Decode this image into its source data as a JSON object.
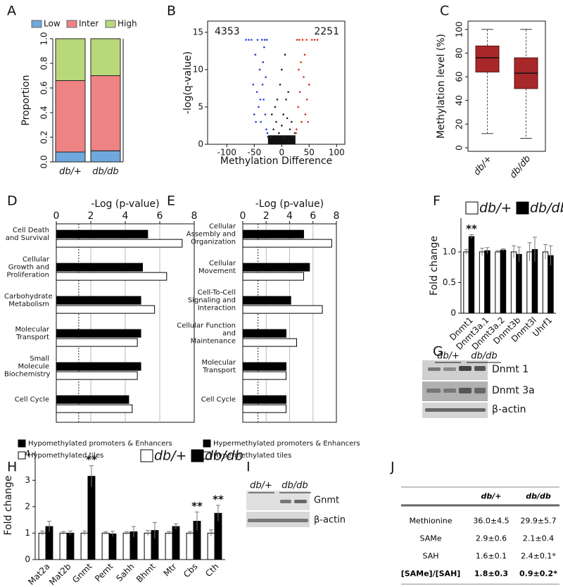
{
  "panel_labels": [
    "A",
    "B",
    "C",
    "D",
    "E",
    "F",
    "G",
    "H",
    "I",
    "J"
  ],
  "chart_data": [
    {
      "type": "bar",
      "stacked": true,
      "categories": [
        "db/+",
        "db/db"
      ],
      "ylabel": "Proportion",
      "series": [
        {
          "name": "Low",
          "color": "#6fa8dc",
          "values": [
            0.08,
            0.09
          ]
        },
        {
          "name": "Inter",
          "color": "#ee8383",
          "values": [
            0.58,
            0.61
          ]
        },
        {
          "name": "High",
          "color": "#b8d87a",
          "values": [
            0.34,
            0.3
          ]
        }
      ],
      "ylim": [
        0,
        1
      ],
      "yticks": [
        {
          "value": 0,
          "label": "0.0"
        },
        0.2,
        0.4,
        0.6,
        0.8,
        {
          "value": 1,
          "label": "1.0"
        }
      ]
    },
    {
      "type": "scatter",
      "xlabel": "Methylation Difference",
      "ylabel": "-log(q-value)",
      "annotations": [
        {
          "text": "4353",
          "color": "#1f3fd6"
        },
        {
          "text": "2251",
          "color": "#e02b1a"
        }
      ],
      "series": [
        {
          "color": "#222222",
          "x": [
            -20,
            -15,
            -10,
            -5,
            0,
            5,
            10,
            15,
            20,
            -12,
            8,
            -3,
            3,
            18,
            -18,
            0,
            12,
            -8,
            6,
            -25,
            24
          ],
          "values": [
            1,
            2,
            3,
            1.5,
            2.5,
            1,
            3.5,
            2,
            1,
            5,
            6,
            8,
            4,
            3,
            4,
            10,
            7,
            6,
            12,
            1,
            1.5
          ]
        },
        {
          "color": "#1f3fd6",
          "x": [
            -28,
            -30,
            -33,
            -35,
            -38,
            -40,
            -42,
            -45,
            -48,
            -50,
            -27,
            -31,
            -36,
            -44,
            -55,
            -60,
            -26,
            -29,
            -34,
            -39,
            -47,
            -52,
            -65,
            -32
          ],
          "values": [
            2,
            4,
            6,
            8,
            3,
            10,
            5,
            7,
            12,
            4,
            14,
            14,
            14,
            14,
            14,
            14,
            1.5,
            9,
            11,
            6,
            3,
            8,
            14,
            13
          ]
        },
        {
          "color": "#e02b1a",
          "x": [
            27,
            30,
            33,
            36,
            40,
            43,
            46,
            50,
            28,
            32,
            38,
            45,
            55,
            60,
            26,
            35,
            42,
            48,
            65,
            31
          ],
          "values": [
            2,
            5,
            7,
            3,
            9,
            4,
            6,
            8,
            14,
            14,
            14,
            14,
            14,
            14,
            1.5,
            11,
            12,
            3,
            14,
            10
          ]
        }
      ],
      "xlim": [
        -135,
        115
      ],
      "xticks": [
        -100,
        -50,
        0,
        50,
        100
      ],
      "ylim": [
        0,
        16.5
      ],
      "yticks": [
        0,
        5,
        10,
        15
      ]
    },
    {
      "type": "box",
      "categories": [
        "db/+",
        "db/db"
      ],
      "ylabel": "Methylation level (%)",
      "color": "#a8282a",
      "boxes": [
        {
          "min": 12,
          "q1": 64,
          "median": 76,
          "q3": 86,
          "max": 100
        },
        {
          "min": 8,
          "q1": 50,
          "median": 63,
          "q3": 76,
          "max": 100
        }
      ],
      "ylim": [
        -3,
        107
      ],
      "yticks": [
        0,
        20,
        40,
        60,
        80,
        100
      ]
    },
    {
      "type": "bar",
      "orientation": "horizontal",
      "xlabel": "-Log (p-value)",
      "threshold": 1.3,
      "categories": [
        "Cell Death and Survival",
        "Cellular Growth and Proliferation",
        "Carbohydrate Metabolism",
        "Molecular Transport",
        "Small Molecule Biochemistry",
        "Cell Cycle"
      ],
      "series": [
        {
          "name": "Hypomethylated promoters & Enhancers",
          "color": "#000000",
          "values": [
            5.3,
            5.0,
            4.9,
            4.9,
            4.9,
            4.2
          ]
        },
        {
          "name": "Hypomethylated tiles",
          "color": "#ffffff",
          "values": [
            7.3,
            6.4,
            5.7,
            4.7,
            4.7,
            4.4
          ]
        }
      ],
      "xlim": [
        0,
        8
      ],
      "xticks": [
        0,
        2,
        4,
        6,
        8
      ]
    },
    {
      "type": "bar",
      "orientation": "horizontal",
      "xlabel": "-Log (p-value)",
      "threshold": 1.3,
      "categories": [
        "Cellular Assembly and Organization",
        "Cellular Movement",
        "Cell-To-Cell Signaling and Interaction",
        "Cellular Function and Maintenance",
        "Molecular Transport",
        "Cell Cycle"
      ],
      "series": [
        {
          "name": "Hypermethylated promoters & Enhancers",
          "color": "#000000",
          "values": [
            5.2,
            5.7,
            4.1,
            3.7,
            3.7,
            3.7
          ]
        },
        {
          "name": "Hypermethylated tiles",
          "color": "#ffffff",
          "values": [
            7.6,
            5.2,
            6.8,
            4.6,
            3.7,
            3.7
          ]
        }
      ],
      "xlim": [
        0,
        8
      ],
      "xticks": [
        0,
        2,
        4,
        6,
        8
      ]
    },
    {
      "type": "bar",
      "ylabel": "Fold change",
      "categories": [
        "Dnmt1",
        "Dnmt3a.1",
        "Dnmt3a.2",
        "Dnmt3b",
        "Dnmt3l",
        "Uhrf1"
      ],
      "series": [
        {
          "name": "db/+",
          "color": "#ffffff",
          "values": [
            1,
            1,
            1,
            1,
            1,
            1
          ],
          "errors": [
            0.04,
            0.06,
            0.02,
            0.1,
            0.15,
            0.12
          ]
        },
        {
          "name": "db/db",
          "color": "#000000",
          "values": [
            1.25,
            1.02,
            1.03,
            0.96,
            1.04,
            0.94
          ],
          "errors": [
            0.03,
            0.05,
            0.02,
            0.12,
            0.2,
            0.16
          ]
        }
      ],
      "annotations": [
        {
          "text": "**",
          "x": "Dnmt1"
        }
      ],
      "ylim": [
        0,
        1.55
      ],
      "yticks": [
        0,
        0.5,
        {
          "value": 1,
          "label": "1.0"
        }
      ]
    },
    {
      "type": "bar",
      "ylabel": "Fold change",
      "categories": [
        "Mat2a",
        "Mat2b",
        "Gnmt",
        "Pemt",
        "Sahh",
        "Bhmt",
        "Mtr",
        "Cbs",
        "Cth"
      ],
      "series": [
        {
          "name": "db/+",
          "color": "#ffffff",
          "values": [
            1,
            1,
            1,
            1,
            1,
            1,
            1,
            1,
            1
          ],
          "errors": [
            0.08,
            0.06,
            0.08,
            0.05,
            0.05,
            0.1,
            0.06,
            0.06,
            0.12
          ]
        },
        {
          "name": "db/db",
          "color": "#000000",
          "values": [
            1.25,
            1.0,
            3.15,
            0.97,
            1.05,
            1.1,
            1.25,
            1.45,
            1.75
          ],
          "errors": [
            0.2,
            0.08,
            0.4,
            0.1,
            0.2,
            0.3,
            0.1,
            0.35,
            0.3
          ]
        }
      ],
      "annotations": [
        {
          "text": "**",
          "x": "Gnmt"
        },
        {
          "text": "**",
          "x": "Cbs"
        },
        {
          "text": "**",
          "x": "Cth"
        }
      ],
      "ylim": [
        0,
        4.1
      ],
      "yticks": [
        0,
        1,
        2,
        3,
        4
      ]
    }
  ],
  "blot_g": {
    "groups": [
      "db/+",
      "db/db"
    ],
    "bands": [
      "Dnmt 1",
      "Dnmt 3a",
      "β-actin"
    ]
  },
  "blot_i": {
    "groups": [
      "db/+",
      "db/db"
    ],
    "bands": [
      "Gnmt",
      "β-actin"
    ]
  },
  "table": {
    "header": [
      "db/+",
      "db/db"
    ],
    "rows": [
      [
        "Methionine",
        "36.0±4.5",
        "29.9±5.7"
      ],
      [
        "SAMe",
        "2.9±0.6",
        "2.1±0.4"
      ],
      [
        "SAH",
        "1.6±0.1",
        "2.4±0.1*"
      ],
      [
        "[SAMe]/[SAH]",
        "1.8±0.3",
        "0.9±0.2*"
      ]
    ]
  }
}
